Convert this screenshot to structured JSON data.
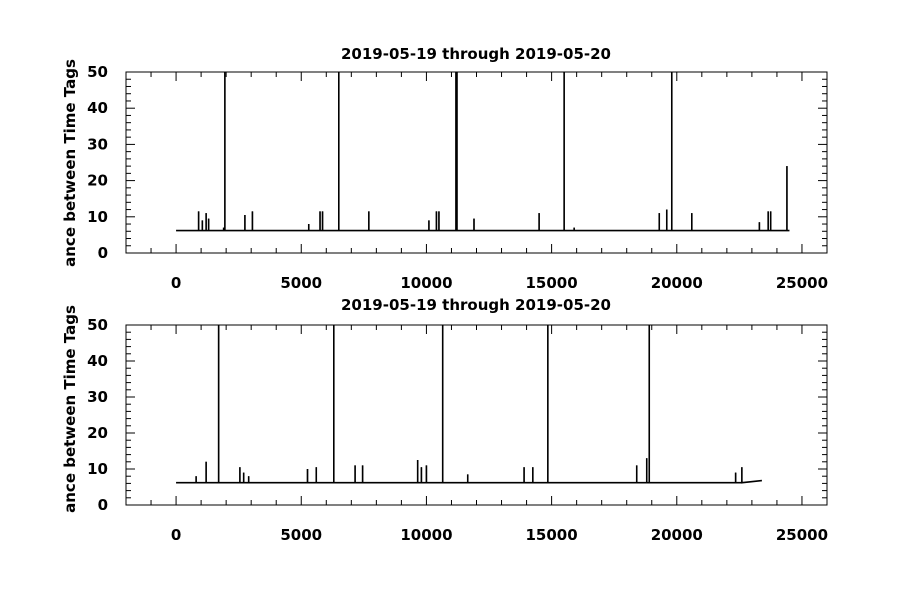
{
  "chart_data": [
    {
      "type": "line",
      "title": "2019-05-19 through 2019-05-20",
      "ylabel": "ance between Time Tags",
      "xlabel": "",
      "xlim": [
        -2000,
        26000
      ],
      "ylim": [
        0,
        50
      ],
      "x_ticks": [
        0,
        5000,
        10000,
        15000,
        20000,
        25000
      ],
      "y_ticks": [
        0,
        10,
        20,
        30,
        40,
        50
      ],
      "grid": false,
      "baseline": 6.2,
      "x_end": 24500,
      "end_value": 6.2,
      "spikes": [
        {
          "x": 900,
          "y": 11.5
        },
        {
          "x": 1050,
          "y": 9
        },
        {
          "x": 1200,
          "y": 11
        },
        {
          "x": 1300,
          "y": 9.5
        },
        {
          "x": 1900,
          "y": 7
        },
        {
          "x": 1950,
          "y": 52
        },
        {
          "x": 2750,
          "y": 10.5
        },
        {
          "x": 3050,
          "y": 11.5
        },
        {
          "x": 5300,
          "y": 8
        },
        {
          "x": 5750,
          "y": 11.5
        },
        {
          "x": 5850,
          "y": 11.5
        },
        {
          "x": 6500,
          "y": 52
        },
        {
          "x": 7700,
          "y": 11.5
        },
        {
          "x": 10100,
          "y": 9
        },
        {
          "x": 10400,
          "y": 11.5
        },
        {
          "x": 10500,
          "y": 11.5
        },
        {
          "x": 11180,
          "y": 52
        },
        {
          "x": 11220,
          "y": 52
        },
        {
          "x": 11900,
          "y": 9.5
        },
        {
          "x": 14500,
          "y": 11
        },
        {
          "x": 15500,
          "y": 52
        },
        {
          "x": 15900,
          "y": 7
        },
        {
          "x": 19300,
          "y": 11
        },
        {
          "x": 19600,
          "y": 12
        },
        {
          "x": 19800,
          "y": 52
        },
        {
          "x": 20600,
          "y": 11
        },
        {
          "x": 23300,
          "y": 8.5
        },
        {
          "x": 23650,
          "y": 11.5
        },
        {
          "x": 23750,
          "y": 11.5
        },
        {
          "x": 24400,
          "y": 24
        }
      ]
    },
    {
      "type": "line",
      "title": "2019-05-19 through 2019-05-20",
      "ylabel": "ance between Time Tags",
      "xlabel": "",
      "xlim": [
        -2000,
        26000
      ],
      "ylim": [
        0,
        50
      ],
      "x_ticks": [
        0,
        5000,
        10000,
        15000,
        20000,
        25000
      ],
      "y_ticks": [
        0,
        10,
        20,
        30,
        40,
        50
      ],
      "grid": false,
      "baseline": 6.2,
      "x_end": 23400,
      "end_value": 6.8,
      "spikes": [
        {
          "x": 800,
          "y": 8
        },
        {
          "x": 1200,
          "y": 12
        },
        {
          "x": 1700,
          "y": 52
        },
        {
          "x": 2550,
          "y": 10.5
        },
        {
          "x": 2700,
          "y": 9
        },
        {
          "x": 2900,
          "y": 8
        },
        {
          "x": 5250,
          "y": 10
        },
        {
          "x": 5600,
          "y": 10.5
        },
        {
          "x": 6300,
          "y": 52
        },
        {
          "x": 7150,
          "y": 11
        },
        {
          "x": 7450,
          "y": 11
        },
        {
          "x": 9650,
          "y": 12.5
        },
        {
          "x": 9800,
          "y": 10.5
        },
        {
          "x": 10000,
          "y": 11
        },
        {
          "x": 10650,
          "y": 52
        },
        {
          "x": 11650,
          "y": 8.5
        },
        {
          "x": 13900,
          "y": 10.5
        },
        {
          "x": 14250,
          "y": 10.5
        },
        {
          "x": 14850,
          "y": 52
        },
        {
          "x": 18400,
          "y": 11
        },
        {
          "x": 18800,
          "y": 13
        },
        {
          "x": 18900,
          "y": 52
        },
        {
          "x": 22350,
          "y": 9
        },
        {
          "x": 22600,
          "y": 10.5
        }
      ]
    }
  ]
}
